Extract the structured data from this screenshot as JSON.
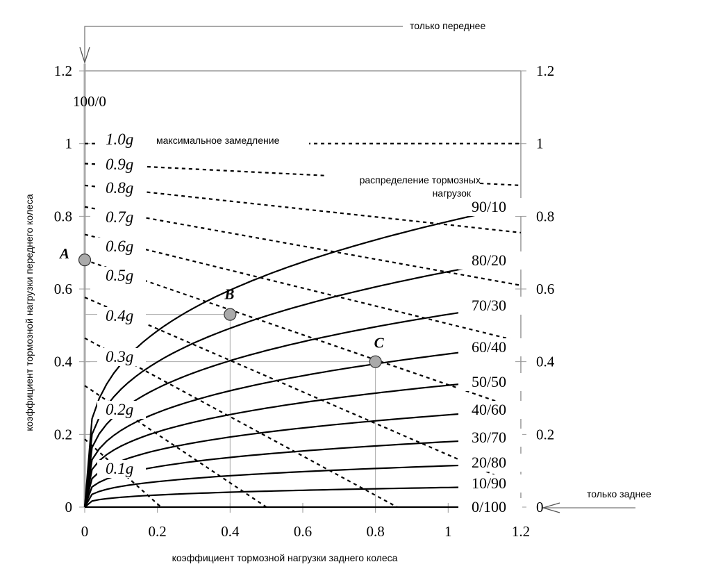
{
  "chart_data": {
    "type": "line",
    "xlabel": "коэффициент тормозной нагрузки заднего колеса",
    "ylabel": "коэффициент тормозной нагрузки переднего колеса",
    "xlim": [
      0,
      1.2
    ],
    "ylim": [
      0,
      1.2
    ],
    "x_ticks": [
      "0",
      "0.2",
      "0.4",
      "0.6",
      "0.8",
      "1",
      "1.2"
    ],
    "y_ticks": [
      "0",
      "0.2",
      "0.4",
      "0.6",
      "0.8",
      "1",
      "1.2"
    ],
    "top_label": "100/0",
    "annotations": {
      "max_decel": "максимальное замедление",
      "distribution_1": "распределение тормозных",
      "distribution_2": "нагрузок",
      "front_only": "только переднее",
      "rear_only": "только заднее"
    },
    "points": [
      {
        "name": "A",
        "x": 0,
        "y": 0.68
      },
      {
        "name": "B",
        "x": 0.4,
        "y": 0.53
      },
      {
        "name": "C",
        "x": 0.8,
        "y": 0.4
      }
    ],
    "distribution_series": [
      {
        "name": "90/10",
        "y_at_1_2": 0.83
      },
      {
        "name": "80/20",
        "y_at_1_2": 0.684
      },
      {
        "name": "70/30",
        "y_at_1_2": 0.56
      },
      {
        "name": "60/40",
        "y_at_1_2": 0.445
      },
      {
        "name": "50/50",
        "y_at_1_2": 0.354
      },
      {
        "name": "40/60",
        "y_at_1_2": 0.268
      },
      {
        "name": "30/70",
        "y_at_1_2": 0.19
      },
      {
        "name": "20/80",
        "y_at_1_2": 0.12
      },
      {
        "name": "10/90",
        "y_at_1_2": 0.057
      },
      {
        "name": "0/100",
        "y_at_1_2": 0
      }
    ],
    "deceleration_lines": [
      {
        "name": "1.0g",
        "from": [
          0,
          1.0
        ],
        "to": [
          1.2,
          1.0
        ]
      },
      {
        "name": "0.9g",
        "from": [
          0,
          0.945
        ],
        "to": [
          1.2,
          0.885
        ]
      },
      {
        "name": "0.8g",
        "from": [
          0,
          0.885
        ],
        "to": [
          1.2,
          0.755
        ]
      },
      {
        "name": "0.7g",
        "from": [
          0,
          0.826
        ],
        "to": [
          1.2,
          0.61
        ]
      },
      {
        "name": "0.6g",
        "from": [
          0,
          0.75
        ],
        "to": [
          1.2,
          0.455
        ]
      },
      {
        "name": "0.5g",
        "from": [
          0,
          0.68
        ],
        "to": [
          1.2,
          0.268
        ]
      },
      {
        "name": "0.4g",
        "from": [
          0,
          0.577
        ],
        "to": [
          1.2,
          0.057
        ]
      },
      {
        "name": "0.3g",
        "from": [
          0,
          0.465
        ],
        "to": [
          0.86,
          0
        ]
      },
      {
        "name": "0.2g",
        "from": [
          0,
          0.334
        ],
        "to": [
          0.5,
          0
        ]
      },
      {
        "name": "0.1g",
        "from": [
          0,
          0.187
        ],
        "to": [
          0.21,
          0
        ]
      }
    ]
  }
}
